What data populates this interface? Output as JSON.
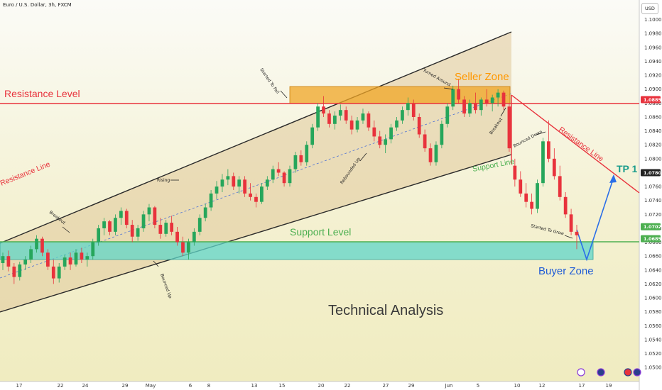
{
  "header": {
    "symbol_title": "Euro / U.S. Dollar, 3h, FXCM",
    "currency_badge": "USD"
  },
  "colors": {
    "resistance": "#e8323c",
    "support": "#4caf50",
    "buyer": "#1e5bd6",
    "seller": "#ff9800",
    "tp": "#1a9c8c"
  },
  "chart_data": {
    "type": "candlestick",
    "title": "Technical Analysis",
    "y_axis": {
      "ticks": [
        "1.10000",
        "1.09800",
        "1.09600",
        "1.09400",
        "1.09200",
        "1.09000",
        "1.08800",
        "1.08600",
        "1.08400",
        "1.08200",
        "1.08000",
        "1.07800",
        "1.07600",
        "1.07400",
        "1.07200",
        "1.07000",
        "1.06800",
        "1.06600",
        "1.06400",
        "1.06200",
        "1.06000",
        "1.05800",
        "1.05600",
        "1.05400",
        "1.05200",
        "1.05000"
      ],
      "range": [
        1.049,
        1.102
      ],
      "price_tags": [
        {
          "value": 1.0885,
          "label": "1.08850",
          "color": "#e8323c"
        },
        {
          "value": 1.078,
          "label": "1.07800",
          "color": "#222222"
        },
        {
          "value": 1.07023,
          "label": "1.07023",
          "color": "#4caf50"
        },
        {
          "value": 1.0685,
          "label": "1.06850",
          "color": "#4caf50"
        }
      ]
    },
    "x_axis": {
      "ticks": [
        "17",
        "22",
        "24",
        "29",
        "May",
        "6",
        "8",
        "13",
        "15",
        "20",
        "22",
        "27",
        "29",
        "Jun",
        "5",
        "10",
        "12",
        "17",
        "19"
      ]
    },
    "levels": {
      "resistance": {
        "value": 1.0885,
        "label": "Resistance Level"
      },
      "support": {
        "value": 1.0685,
        "label": "Support Level"
      }
    },
    "zones": {
      "seller": {
        "label": "Seller Zone",
        "from": 1.0885,
        "to": 1.091
      },
      "buyer": {
        "label": "Buyer Zone",
        "from": 1.066,
        "to": 1.0685
      }
    },
    "lines": {
      "resistance_line": "Resistance Line",
      "support_line": "Support Line",
      "resistance_line_right": "Resistance Line"
    },
    "target": {
      "label": "TP 1",
      "value": 1.078
    },
    "annotations": [
      "Breakout",
      "Rising",
      "Started To Fall",
      "Rebounded Up",
      "Turned Around",
      "Breakout",
      "Bounced Down",
      "Started To Grow",
      "Bounced Up"
    ],
    "candles": [
      [
        1.065,
        1.0665,
        1.064,
        1.066
      ],
      [
        1.066,
        1.0668,
        1.0638,
        1.0645
      ],
      [
        1.0645,
        1.065,
        1.062,
        1.063
      ],
      [
        1.063,
        1.0652,
        1.0625,
        1.0648
      ],
      [
        1.0648,
        1.066,
        1.064,
        1.0655
      ],
      [
        1.0655,
        1.0675,
        1.065,
        1.067
      ],
      [
        1.067,
        1.069,
        1.0665,
        1.0685
      ],
      [
        1.0685,
        1.0688,
        1.066,
        1.0665
      ],
      [
        1.0665,
        1.067,
        1.064,
        1.0645
      ],
      [
        1.0645,
        1.0655,
        1.062,
        1.0628
      ],
      [
        1.0628,
        1.065,
        1.0622,
        1.0645
      ],
      [
        1.0645,
        1.0662,
        1.064,
        1.0658
      ],
      [
        1.0658,
        1.0665,
        1.064,
        1.0648
      ],
      [
        1.0648,
        1.067,
        1.0645,
        1.0665
      ],
      [
        1.0665,
        1.0672,
        1.065,
        1.0655
      ],
      [
        1.0655,
        1.0665,
        1.0645,
        1.066
      ],
      [
        1.066,
        1.0685,
        1.0655,
        1.068
      ],
      [
        1.068,
        1.0705,
        1.0675,
        1.07
      ],
      [
        1.07,
        1.0715,
        1.069,
        1.071
      ],
      [
        1.071,
        1.0712,
        1.069,
        1.0695
      ],
      [
        1.0695,
        1.072,
        1.069,
        1.0715
      ],
      [
        1.0715,
        1.073,
        1.0705,
        1.0725
      ],
      [
        1.0725,
        1.0728,
        1.07,
        1.0705
      ],
      [
        1.0705,
        1.0712,
        1.068,
        1.0688
      ],
      [
        1.0688,
        1.0705,
        1.0682,
        1.07
      ],
      [
        1.07,
        1.0725,
        1.0695,
        1.072
      ],
      [
        1.072,
        1.0735,
        1.071,
        1.073
      ],
      [
        1.073,
        1.0732,
        1.07,
        1.0705
      ],
      [
        1.0705,
        1.0715,
        1.0685,
        1.0692
      ],
      [
        1.0692,
        1.0712,
        1.0688,
        1.0708
      ],
      [
        1.0708,
        1.0718,
        1.069,
        1.0695
      ],
      [
        1.0695,
        1.0702,
        1.0675,
        1.068
      ],
      [
        1.068,
        1.0688,
        1.066,
        1.0665
      ],
      [
        1.0665,
        1.0685,
        1.0655,
        1.068
      ],
      [
        1.068,
        1.07,
        1.0675,
        1.0695
      ],
      [
        1.0695,
        1.072,
        1.069,
        1.0715
      ],
      [
        1.0715,
        1.0735,
        1.071,
        1.073
      ],
      [
        1.073,
        1.0755,
        1.0725,
        1.075
      ],
      [
        1.075,
        1.0768,
        1.0742,
        1.076
      ],
      [
        1.076,
        1.0778,
        1.0752,
        1.077
      ],
      [
        1.077,
        1.0785,
        1.0762,
        1.0775
      ],
      [
        1.0775,
        1.078,
        1.0755,
        1.076
      ],
      [
        1.076,
        1.0775,
        1.075,
        1.077
      ],
      [
        1.077,
        1.0775,
        1.0745,
        1.075
      ],
      [
        1.075,
        1.0765,
        1.074,
        1.0745
      ],
      [
        1.0745,
        1.075,
        1.073,
        1.0738
      ],
      [
        1.0738,
        1.0765,
        1.0735,
        1.076
      ],
      [
        1.076,
        1.0775,
        1.0755,
        1.077
      ],
      [
        1.077,
        1.079,
        1.0765,
        1.0785
      ],
      [
        1.0785,
        1.0795,
        1.0775,
        1.078
      ],
      [
        1.078,
        1.0782,
        1.076,
        1.0765
      ],
      [
        1.0765,
        1.079,
        1.076,
        1.0785
      ],
      [
        1.0785,
        1.081,
        1.078,
        1.0805
      ],
      [
        1.0805,
        1.0812,
        1.079,
        1.0795
      ],
      [
        1.0795,
        1.0825,
        1.079,
        1.082
      ],
      [
        1.082,
        1.085,
        1.0815,
        1.0845
      ],
      [
        1.0845,
        1.088,
        1.084,
        1.0875
      ],
      [
        1.0875,
        1.089,
        1.086,
        1.0865
      ],
      [
        1.0865,
        1.087,
        1.0845,
        1.085
      ],
      [
        1.085,
        1.0868,
        1.0842,
        1.0862
      ],
      [
        1.0862,
        1.0878,
        1.0855,
        1.087
      ],
      [
        1.087,
        1.0875,
        1.085,
        1.0855
      ],
      [
        1.0855,
        1.0862,
        1.0835,
        1.0842
      ],
      [
        1.0842,
        1.086,
        1.0838,
        1.0855
      ],
      [
        1.0855,
        1.0872,
        1.085,
        1.0865
      ],
      [
        1.0865,
        1.0868,
        1.084,
        1.0845
      ],
      [
        1.0845,
        1.0855,
        1.0825,
        1.0832
      ],
      [
        1.0832,
        1.084,
        1.0815,
        1.082
      ],
      [
        1.082,
        1.0835,
        1.0808,
        1.0828
      ],
      [
        1.0828,
        1.085,
        1.0822,
        1.0845
      ],
      [
        1.0845,
        1.086,
        1.084,
        1.0855
      ],
      [
        1.0855,
        1.0875,
        1.085,
        1.087
      ],
      [
        1.087,
        1.0888,
        1.0862,
        1.088
      ],
      [
        1.088,
        1.0885,
        1.0855,
        1.086
      ],
      [
        1.086,
        1.0865,
        1.083,
        1.0835
      ],
      [
        1.0835,
        1.0842,
        1.081,
        1.0815
      ],
      [
        1.0815,
        1.0822,
        1.079,
        1.0795
      ],
      [
        1.0795,
        1.0825,
        1.079,
        1.082
      ],
      [
        1.082,
        1.0855,
        1.0815,
        1.085
      ],
      [
        1.085,
        1.088,
        1.0845,
        1.0875
      ],
      [
        1.0875,
        1.0905,
        1.087,
        1.09
      ],
      [
        1.09,
        1.0915,
        1.088,
        1.0885
      ],
      [
        1.0885,
        1.089,
        1.086,
        1.0865
      ],
      [
        1.0865,
        1.0885,
        1.086,
        1.088
      ],
      [
        1.088,
        1.0895,
        1.0865,
        1.087
      ],
      [
        1.087,
        1.0888,
        1.0862,
        1.0885
      ],
      [
        1.0885,
        1.09,
        1.0875,
        1.088
      ],
      [
        1.088,
        1.0892,
        1.0868,
        1.0888
      ],
      [
        1.0888,
        1.09,
        1.0875,
        1.0895
      ],
      [
        1.0895,
        1.0898,
        1.087,
        1.0875
      ],
      [
        1.0875,
        1.088,
        1.081,
        1.0815
      ],
      [
        1.079,
        1.08,
        1.076,
        1.077
      ],
      [
        1.077,
        1.0782,
        1.0745,
        1.075
      ],
      [
        1.075,
        1.0765,
        1.073,
        1.0738
      ],
      [
        1.0738,
        1.075,
        1.072,
        1.0728
      ],
      [
        1.0728,
        1.077,
        1.0722,
        1.0765
      ],
      [
        1.0765,
        1.083,
        1.076,
        1.0825
      ],
      [
        1.0825,
        1.0855,
        1.0795,
        1.08
      ],
      [
        1.08,
        1.0815,
        1.077,
        1.0775
      ],
      [
        1.0775,
        1.079,
        1.074,
        1.0745
      ],
      [
        1.0745,
        1.0752,
        1.0715,
        1.072
      ],
      [
        1.072,
        1.0728,
        1.069,
        1.0695
      ],
      [
        1.0695,
        1.0705,
        1.067,
        1.069
      ]
    ]
  }
}
